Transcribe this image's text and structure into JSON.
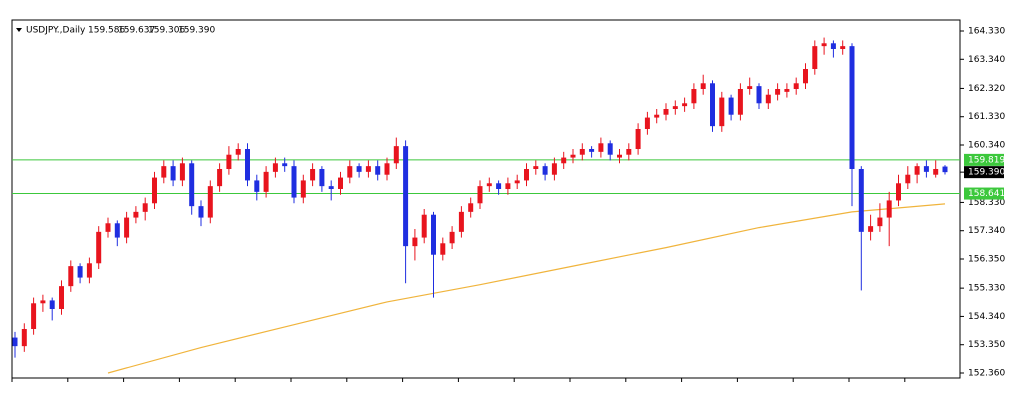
{
  "chart_data": {
    "type": "candlestick",
    "title": "USDJPY.,Daily",
    "header_values": [
      "159.586",
      "159.637",
      "159.306",
      "159.390"
    ],
    "up_color": "#e8141e",
    "down_color": "#1f2ee0",
    "candles": [
      [
        153.6,
        153.8,
        152.9,
        153.3
      ],
      [
        153.3,
        154.1,
        153.1,
        153.9
      ],
      [
        153.9,
        155.0,
        153.7,
        154.8
      ],
      [
        154.8,
        155.1,
        154.5,
        154.9
      ],
      [
        154.9,
        155.0,
        154.2,
        154.6
      ],
      [
        154.6,
        155.6,
        154.4,
        155.4
      ],
      [
        155.4,
        156.3,
        155.2,
        156.1
      ],
      [
        156.1,
        156.2,
        155.5,
        155.7
      ],
      [
        155.7,
        156.4,
        155.5,
        156.2
      ],
      [
        156.2,
        157.5,
        156.0,
        157.3
      ],
      [
        157.3,
        157.8,
        157.1,
        157.6
      ],
      [
        157.6,
        157.7,
        156.8,
        157.1
      ],
      [
        157.1,
        158.0,
        156.9,
        157.8
      ],
      [
        157.8,
        158.2,
        157.6,
        158.0
      ],
      [
        158.0,
        158.5,
        157.7,
        158.3
      ],
      [
        158.3,
        159.4,
        158.1,
        159.2
      ],
      [
        159.2,
        159.8,
        159.0,
        159.6
      ],
      [
        159.6,
        159.8,
        158.9,
        159.1
      ],
      [
        159.1,
        159.9,
        158.9,
        159.7
      ],
      [
        159.7,
        159.8,
        157.9,
        158.2
      ],
      [
        158.2,
        158.4,
        157.5,
        157.8
      ],
      [
        157.8,
        159.1,
        157.6,
        158.9
      ],
      [
        158.9,
        159.7,
        158.7,
        159.5
      ],
      [
        159.5,
        160.3,
        159.3,
        160.0
      ],
      [
        160.0,
        160.4,
        159.8,
        160.2
      ],
      [
        160.2,
        160.4,
        158.9,
        159.1
      ],
      [
        159.1,
        159.3,
        158.4,
        158.7
      ],
      [
        158.7,
        159.6,
        158.5,
        159.4
      ],
      [
        159.4,
        159.9,
        159.2,
        159.7
      ],
      [
        159.7,
        159.9,
        159.4,
        159.6
      ],
      [
        159.6,
        159.8,
        158.3,
        158.5
      ],
      [
        158.5,
        159.3,
        158.3,
        159.1
      ],
      [
        159.1,
        159.7,
        158.9,
        159.5
      ],
      [
        159.5,
        159.6,
        158.7,
        158.9
      ],
      [
        158.9,
        159.1,
        158.4,
        158.8
      ],
      [
        158.8,
        159.4,
        158.6,
        159.2
      ],
      [
        159.2,
        159.8,
        159.0,
        159.6
      ],
      [
        159.6,
        159.7,
        159.2,
        159.4
      ],
      [
        159.4,
        159.8,
        159.2,
        159.6
      ],
      [
        159.6,
        159.8,
        159.1,
        159.3
      ],
      [
        159.3,
        159.9,
        159.1,
        159.7
      ],
      [
        159.7,
        160.6,
        159.5,
        160.3
      ],
      [
        160.3,
        160.5,
        155.5,
        156.8
      ],
      [
        156.8,
        157.4,
        156.3,
        157.1
      ],
      [
        157.1,
        158.1,
        156.9,
        157.9
      ],
      [
        157.9,
        158.0,
        155.0,
        156.5
      ],
      [
        156.5,
        157.1,
        156.3,
        156.9
      ],
      [
        156.9,
        157.5,
        156.7,
        157.3
      ],
      [
        157.3,
        158.2,
        157.1,
        158.0
      ],
      [
        158.0,
        158.5,
        157.8,
        158.3
      ],
      [
        158.3,
        159.1,
        158.1,
        158.9
      ],
      [
        158.9,
        159.2,
        158.7,
        159.0
      ],
      [
        159.0,
        159.1,
        158.6,
        158.8
      ],
      [
        158.8,
        159.2,
        158.6,
        159.0
      ],
      [
        159.0,
        159.3,
        158.8,
        159.1
      ],
      [
        159.1,
        159.7,
        158.9,
        159.5
      ],
      [
        159.5,
        159.8,
        159.3,
        159.6
      ],
      [
        159.6,
        159.7,
        159.1,
        159.3
      ],
      [
        159.3,
        159.9,
        159.1,
        159.7
      ],
      [
        159.7,
        160.1,
        159.5,
        159.9
      ],
      [
        159.9,
        160.2,
        159.7,
        160.0
      ],
      [
        160.0,
        160.4,
        159.8,
        160.2
      ],
      [
        160.2,
        160.3,
        159.9,
        160.1
      ],
      [
        160.1,
        160.6,
        159.9,
        160.4
      ],
      [
        160.4,
        160.5,
        159.8,
        160.0
      ],
      [
        159.9,
        160.2,
        159.7,
        160.0
      ],
      [
        160.0,
        160.4,
        159.8,
        160.2
      ],
      [
        160.2,
        161.1,
        160.0,
        160.9
      ],
      [
        160.9,
        161.5,
        160.7,
        161.3
      ],
      [
        161.3,
        161.6,
        161.1,
        161.4
      ],
      [
        161.4,
        161.8,
        161.2,
        161.6
      ],
      [
        161.6,
        161.9,
        161.4,
        161.7
      ],
      [
        161.7,
        162.0,
        161.5,
        161.8
      ],
      [
        161.8,
        162.5,
        161.6,
        162.3
      ],
      [
        162.3,
        162.8,
        162.1,
        162.5
      ],
      [
        162.5,
        162.6,
        160.8,
        161.0
      ],
      [
        161.0,
        162.2,
        160.8,
        162.0
      ],
      [
        162.0,
        162.1,
        161.2,
        161.4
      ],
      [
        161.4,
        162.5,
        161.2,
        162.3
      ],
      [
        162.3,
        162.7,
        162.1,
        162.4
      ],
      [
        162.4,
        162.5,
        161.6,
        161.8
      ],
      [
        161.8,
        162.3,
        161.6,
        162.1
      ],
      [
        162.1,
        162.5,
        161.9,
        162.3
      ],
      [
        162.2,
        162.5,
        162.0,
        162.3
      ],
      [
        162.3,
        162.7,
        162.1,
        162.5
      ],
      [
        162.5,
        163.2,
        162.3,
        163.0
      ],
      [
        163.0,
        164.0,
        162.8,
        163.8
      ],
      [
        163.8,
        164.1,
        163.5,
        163.9
      ],
      [
        163.9,
        164.0,
        163.4,
        163.7
      ],
      [
        163.7,
        164.0,
        163.5,
        163.8
      ],
      [
        163.8,
        163.9,
        158.2,
        159.5
      ],
      [
        159.5,
        159.6,
        155.25,
        157.3
      ],
      [
        157.3,
        157.9,
        157.0,
        157.5
      ],
      [
        157.5,
        158.3,
        157.3,
        157.8
      ],
      [
        157.8,
        158.7,
        156.8,
        158.4
      ],
      [
        158.4,
        159.3,
        158.2,
        159.0
      ],
      [
        159.0,
        159.6,
        158.8,
        159.3
      ],
      [
        159.3,
        159.7,
        159.0,
        159.6
      ],
      [
        159.6,
        159.8,
        159.2,
        159.4
      ],
      [
        159.3,
        159.8,
        159.2,
        159.5
      ],
      [
        159.586,
        159.637,
        159.306,
        159.39
      ]
    ],
    "ma": {
      "color": "#f0b43c",
      "x": [
        10,
        20,
        30,
        40,
        50,
        60,
        70,
        80,
        90,
        100
      ],
      "values": [
        152.36,
        153.25,
        154.05,
        154.85,
        155.45,
        156.1,
        156.75,
        157.45,
        158.0,
        158.28
      ]
    },
    "hlines": [
      {
        "value": 159.819,
        "label": "159.819"
      },
      {
        "value": 158.641,
        "label": "158.641"
      }
    ],
    "hline_color": "#3cc83c",
    "last_price": {
      "value": 159.39,
      "label": "159.390"
    },
    "ylim": [
      152.185,
      164.715
    ],
    "yticks": [
      {
        "value": 164.33,
        "label": "164.330"
      },
      {
        "value": 163.34,
        "label": "163.340"
      },
      {
        "value": 162.32,
        "label": "162.320"
      },
      {
        "value": 161.33,
        "label": "161.330"
      },
      {
        "value": 160.34,
        "label": "160.340"
      },
      {
        "value": 158.33,
        "label": "158.330"
      },
      {
        "value": 157.34,
        "label": "157.340"
      },
      {
        "value": 156.35,
        "label": "156.350"
      },
      {
        "value": 155.33,
        "label": "155.330"
      },
      {
        "value": 154.34,
        "label": "154.340"
      },
      {
        "value": 153.35,
        "label": "153.350"
      },
      {
        "value": 152.36,
        "label": "152.360"
      }
    ]
  }
}
